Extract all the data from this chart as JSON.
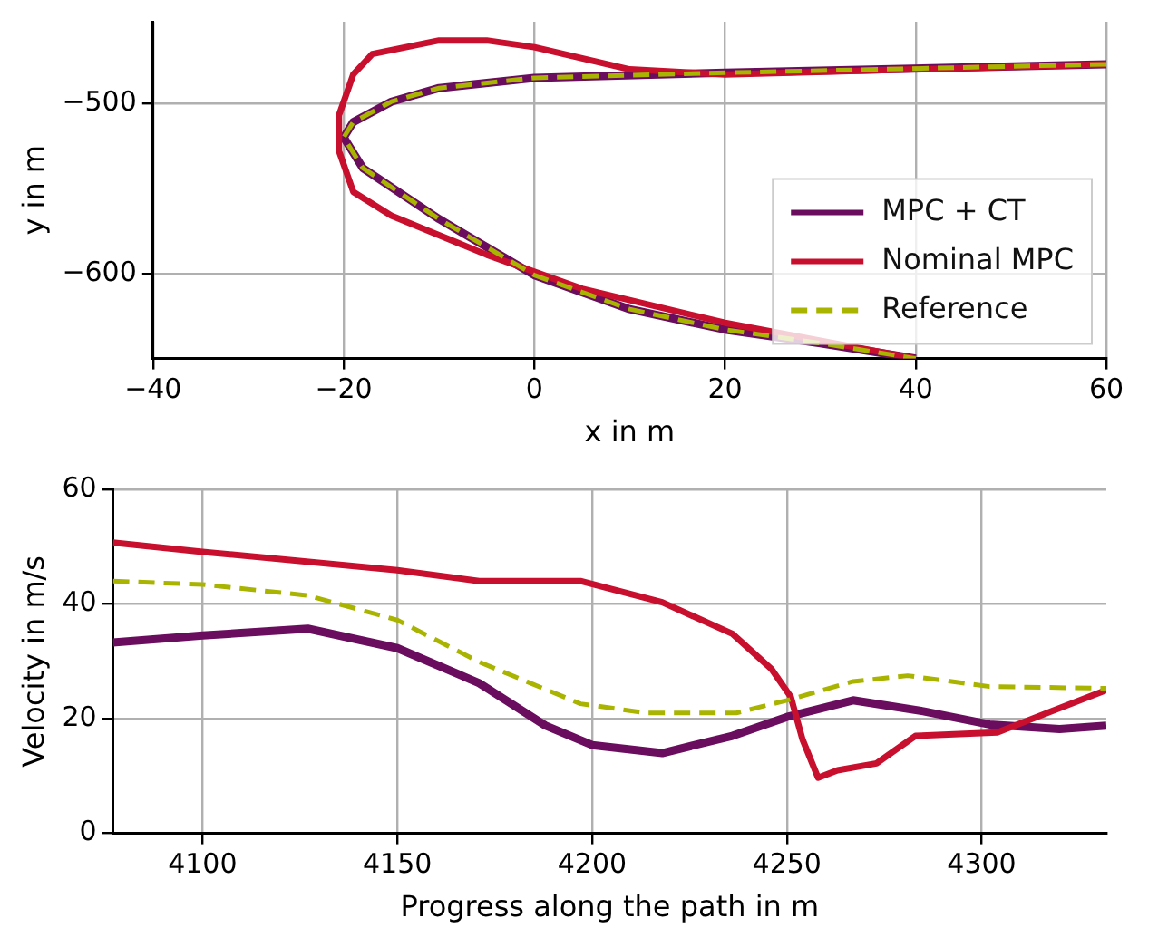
{
  "chart_data": [
    {
      "type": "line",
      "xlabel": "x in m",
      "ylabel": "y in m",
      "xlim": [
        -40,
        60
      ],
      "ylim": [
        -650,
        -452
      ],
      "xticks": [
        {
          "value": -40,
          "label": "−40"
        },
        {
          "value": -20,
          "label": "−20"
        },
        0,
        20,
        40,
        60
      ],
      "yticks": [
        {
          "value": -600,
          "label": "−600"
        },
        {
          "value": -500,
          "label": "−500"
        }
      ],
      "grid": true,
      "legend": "bottom right",
      "marker": "none",
      "series": [
        {
          "name": "MPC + CT",
          "color": "#6a0d5e",
          "line_style": "solid",
          "x": [
            60,
            20,
            0,
            -10,
            -15,
            -19,
            -20,
            -18,
            -10,
            0,
            10,
            20,
            30,
            40
          ],
          "values": [
            -477,
            -482,
            -485,
            -491,
            -499,
            -511,
            -520,
            -538,
            -568,
            -601,
            -621,
            -633,
            -641,
            -650
          ]
        },
        {
          "name": "Nominal MPC",
          "color": "#c8102e",
          "line_style": "solid",
          "x": [
            60,
            20,
            10,
            0,
            -5,
            -10,
            -17,
            -19,
            -20.5,
            -20.5,
            -19,
            -15,
            -5,
            5,
            20,
            40
          ],
          "values": [
            -477,
            -483,
            -480,
            -467,
            -463,
            -463,
            -471,
            -483,
            -507,
            -528,
            -552,
            -566,
            -589,
            -609,
            -629,
            -650
          ]
        },
        {
          "name": "Reference",
          "color": "#a8b400",
          "line_style": "dashed",
          "x": [
            60,
            20,
            0,
            -10,
            -15,
            -19,
            -20,
            -18,
            -10,
            0,
            10,
            20,
            30,
            40
          ],
          "values": [
            -477,
            -482,
            -485,
            -491,
            -499,
            -511,
            -520,
            -538,
            -568,
            -601,
            -621,
            -633,
            -641,
            -650
          ]
        }
      ]
    },
    {
      "type": "line",
      "xlabel": "Progress along the path in m",
      "ylabel": "Velocity in m/s",
      "xlim": [
        4077,
        4332
      ],
      "ylim": [
        0,
        60
      ],
      "xticks": [
        4100,
        4150,
        4200,
        4250,
        4300
      ],
      "yticks": [
        0,
        20,
        40,
        60
      ],
      "grid": true,
      "marker": "none",
      "series": [
        {
          "color": "#6a0d5e",
          "line_style": "solid",
          "x": [
            4077,
            4100,
            4127,
            4150,
            4171,
            4188,
            4200,
            4218,
            4236,
            4250,
            4267,
            4285,
            4302,
            4320,
            4332
          ],
          "values": [
            33.3,
            34.5,
            35.7,
            32.3,
            26.2,
            18.8,
            15.4,
            14,
            17,
            20.3,
            23.2,
            21.3,
            19,
            18.2,
            18.8
          ]
        },
        {
          "color": "#c8102e",
          "line_style": "solid",
          "x": [
            4077,
            4100,
            4150,
            4171,
            4197,
            4218,
            4236,
            4246,
            4251,
            4254,
            4258,
            4263,
            4273,
            4278,
            4283,
            4304,
            4318,
            4332
          ],
          "values": [
            50.7,
            49.1,
            45.9,
            44,
            44,
            40.3,
            34.8,
            28.7,
            23.8,
            16.4,
            9.7,
            11,
            12.2,
            14.6,
            17,
            17.6,
            21.3,
            25
          ]
        },
        {
          "color": "#a8b400",
          "line_style": "dashed",
          "x": [
            4077,
            4100,
            4127,
            4150,
            4171,
            4197,
            4214,
            4237,
            4250,
            4267,
            4281,
            4302,
            4332
          ],
          "values": [
            44,
            43.4,
            41.5,
            37.2,
            29.9,
            22.6,
            21,
            21,
            23.2,
            26.5,
            27.5,
            25.6,
            25.3
          ]
        }
      ]
    }
  ]
}
